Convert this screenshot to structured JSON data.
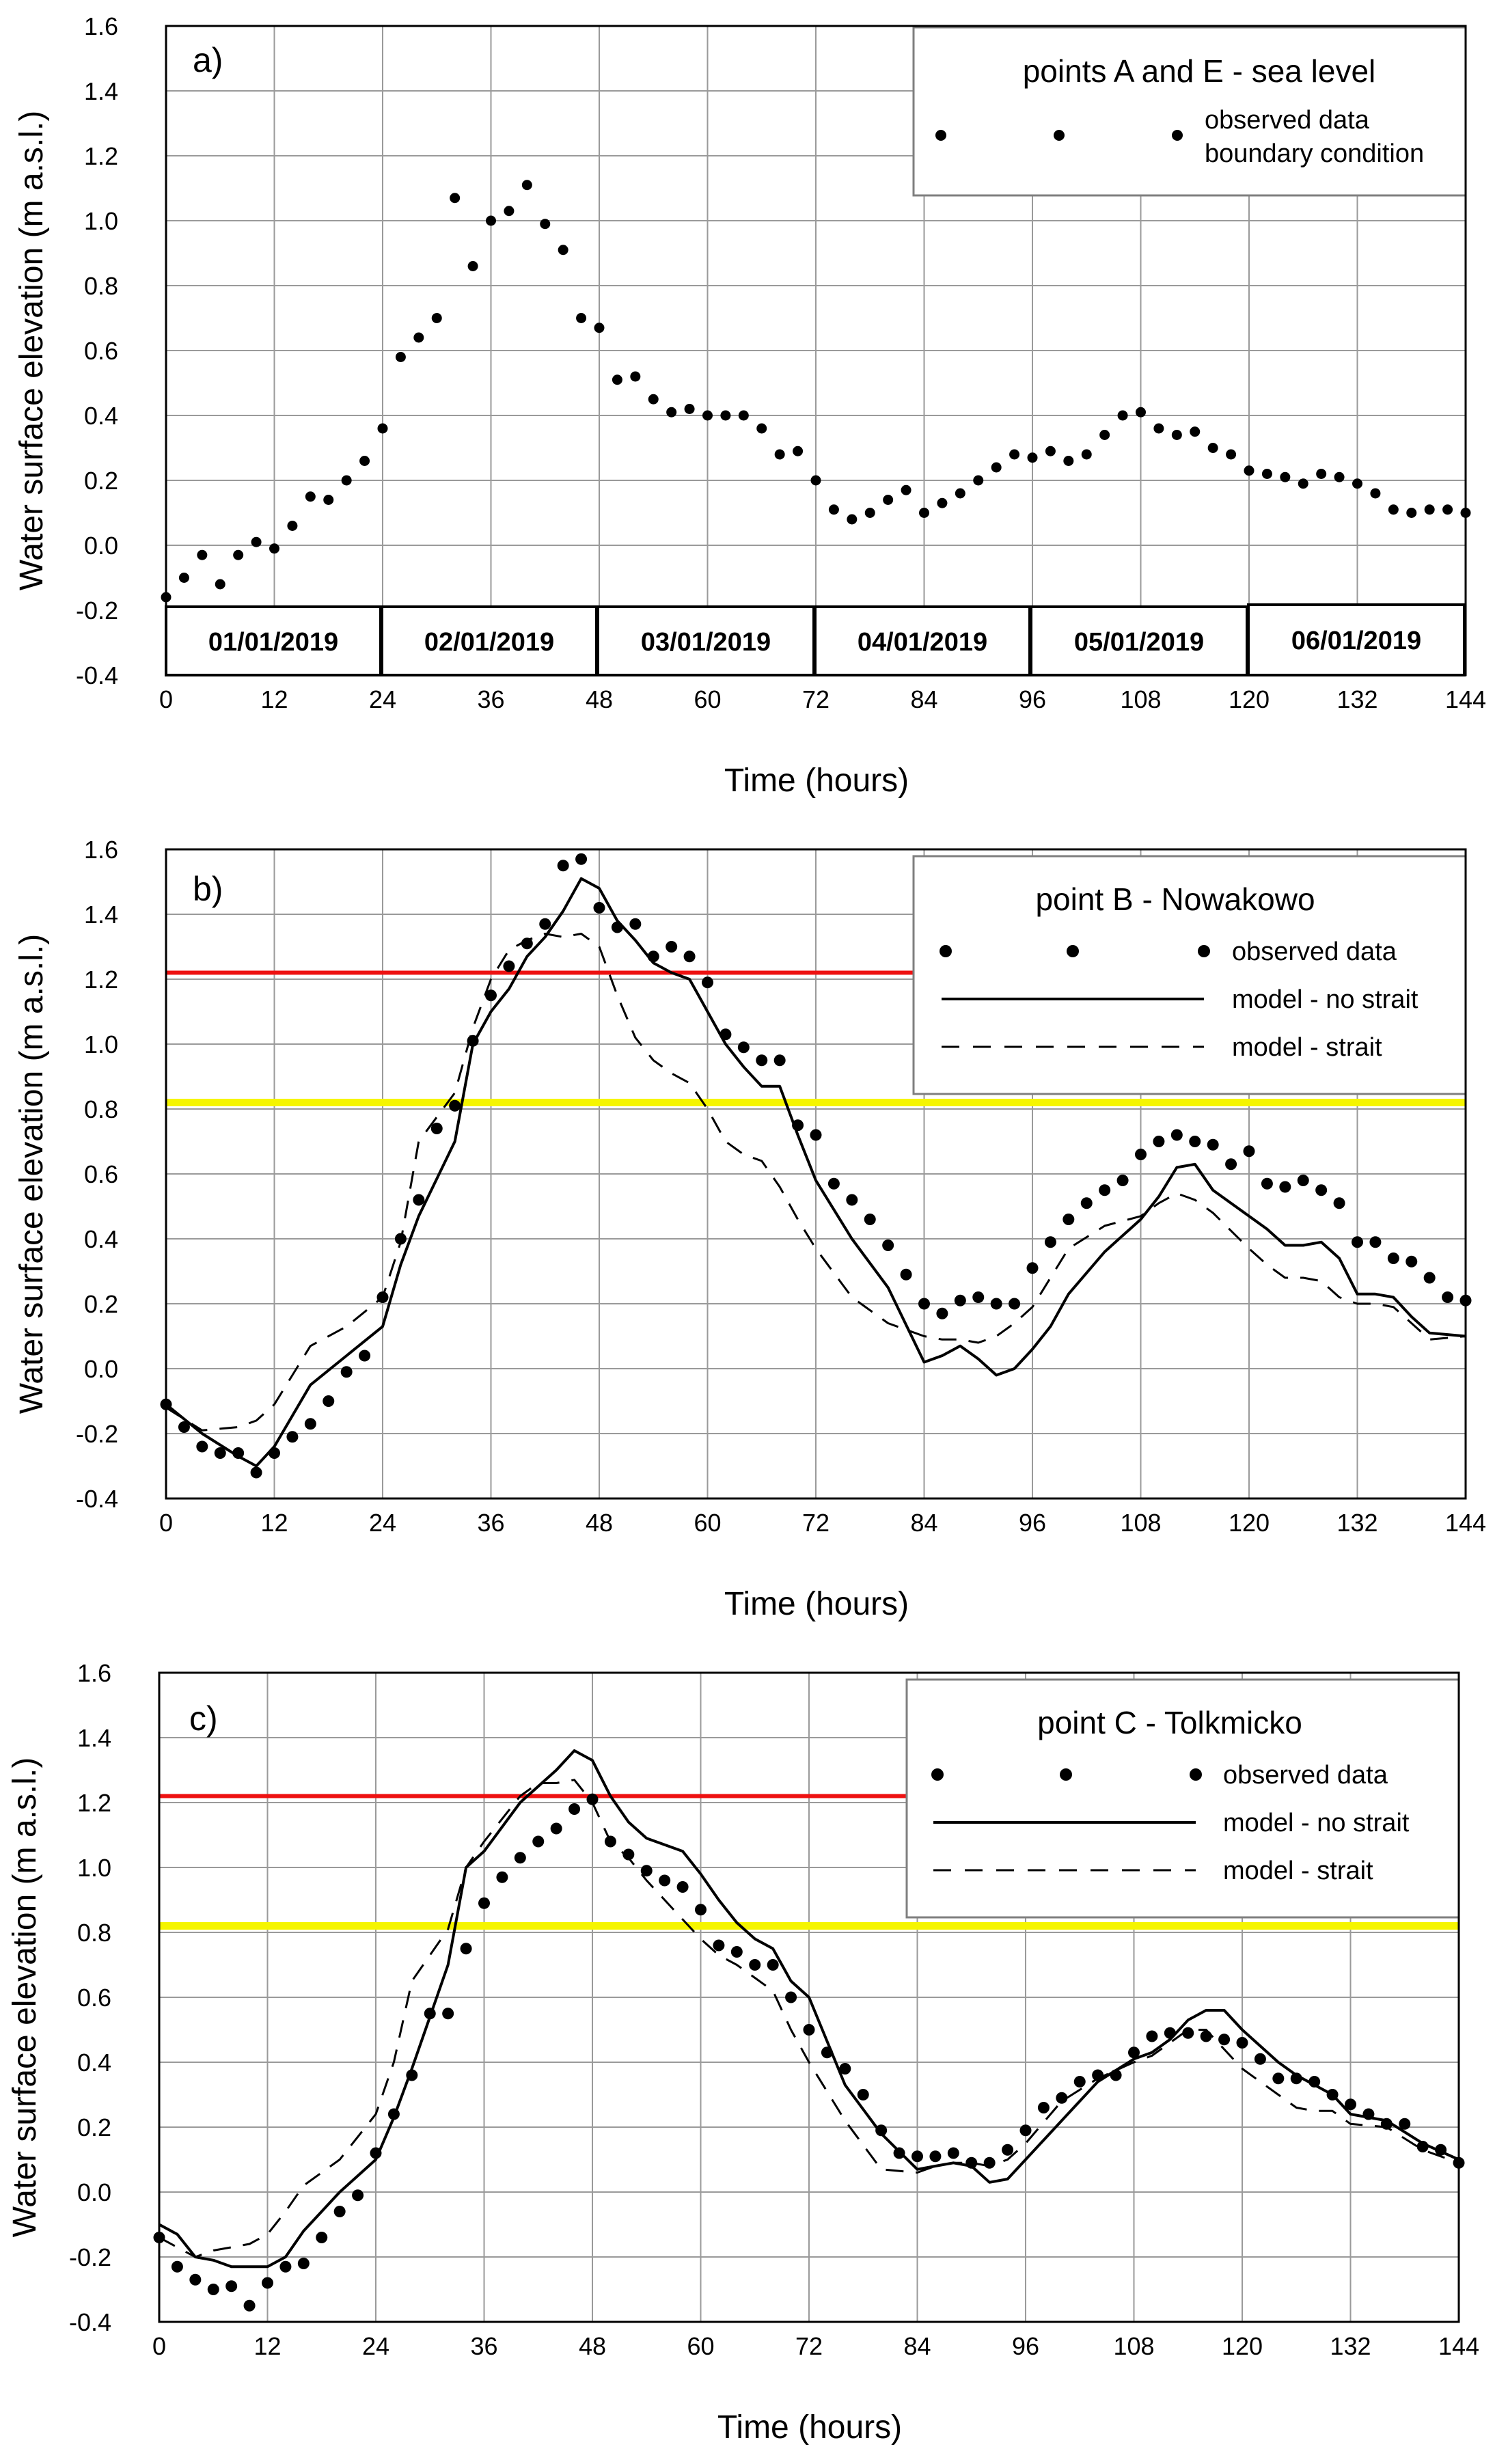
{
  "charts": [
    {
      "panel_label": "a)",
      "legend": {
        "title": "points A and E - sea level",
        "items": [
          "observed data",
          "boundary condition"
        ]
      },
      "dates": [
        "01/01/2019",
        "02/01/2019",
        "03/01/2019",
        "04/01/2019",
        "05/01/2019",
        "06/01/2019"
      ]
    },
    {
      "panel_label": "b)",
      "legend": {
        "title": "point B - Nowakowo",
        "items": [
          "observed data",
          "model - no strait",
          "model - strait"
        ]
      }
    },
    {
      "panel_label": "c)",
      "legend": {
        "title": "point C - Tolkmicko",
        "items": [
          "observed data",
          "model - no strait",
          "model - strait"
        ]
      }
    }
  ],
  "axes": {
    "ylabel": "Water surface elevation (m a.s.l.)",
    "xlabel": "Time (hours)",
    "xticks": [
      "0",
      "12",
      "24",
      "36",
      "48",
      "60",
      "72",
      "84",
      "96",
      "108",
      "120",
      "132",
      "144"
    ],
    "yticks": [
      "-0.4",
      "-0.2",
      "0.0",
      "0.2",
      "0.4",
      "0.6",
      "0.8",
      "1.0",
      "1.2",
      "1.4",
      "1.6"
    ]
  },
  "colors": {
    "red_line": "#ee1111",
    "yellow_line": "#f5f500",
    "grid": "#9a9a9a"
  },
  "chart_data": [
    {
      "type": "scatter",
      "xlim": [
        0,
        144
      ],
      "ylim": [
        -0.4,
        1.6
      ],
      "grid": true,
      "legend_position": "top-right",
      "series": [
        {
          "name": "observed data",
          "x": [
            0,
            2,
            4,
            6,
            8,
            10,
            12,
            14,
            16,
            18,
            20,
            22,
            24,
            26,
            28,
            30,
            32,
            34,
            36,
            38,
            40,
            42,
            44,
            46,
            48,
            50,
            52,
            54,
            56,
            58,
            60,
            62,
            64,
            66,
            68,
            70,
            72,
            74,
            76,
            78,
            80,
            82,
            84,
            86,
            88,
            90,
            92,
            94,
            96,
            98,
            100,
            102,
            104,
            106,
            108,
            110,
            112,
            114,
            116,
            118,
            120,
            122,
            124,
            126,
            128,
            130,
            132,
            134,
            136,
            138,
            140,
            142,
            144
          ],
          "y": [
            -0.16,
            -0.1,
            -0.03,
            -0.12,
            -0.03,
            0.01,
            -0.01,
            0.06,
            0.15,
            0.14,
            0.2,
            0.26,
            0.36,
            0.58,
            0.64,
            0.7,
            1.07,
            0.86,
            1.0,
            1.03,
            1.11,
            0.99,
            0.91,
            0.7,
            0.67,
            0.51,
            0.52,
            0.45,
            0.41,
            0.42,
            0.4,
            0.4,
            0.4,
            0.36,
            0.28,
            0.29,
            0.2,
            0.11,
            0.08,
            0.1,
            0.14,
            0.17,
            0.1,
            0.13,
            0.16,
            0.2,
            0.24,
            0.28,
            0.27,
            0.29,
            0.26,
            0.28,
            0.34,
            0.4,
            0.41,
            0.36,
            0.34,
            0.35,
            0.3,
            0.28,
            0.23,
            0.22,
            0.21,
            0.19,
            0.22,
            0.21,
            0.19,
            0.16,
            0.11,
            0.1,
            0.11,
            0.11,
            0.1
          ]
        }
      ]
    },
    {
      "type": "line",
      "xlim": [
        0,
        144
      ],
      "ylim": [
        -0.4,
        1.6
      ],
      "grid": true,
      "legend_position": "top-right",
      "reference_lines": [
        {
          "y": 1.22,
          "color": "red"
        },
        {
          "y": 0.82,
          "color": "yellow"
        }
      ],
      "series": [
        {
          "name": "observed data",
          "x": [
            0,
            2,
            4,
            6,
            8,
            10,
            12,
            14,
            16,
            18,
            20,
            22,
            24,
            26,
            28,
            30,
            32,
            34,
            36,
            38,
            40,
            42,
            44,
            46,
            48,
            50,
            52,
            54,
            56,
            58,
            60,
            62,
            64,
            66,
            68,
            70,
            72,
            74,
            76,
            78,
            80,
            82,
            84,
            86,
            88,
            90,
            92,
            94,
            96,
            98,
            100,
            102,
            104,
            106,
            108,
            110,
            112,
            114,
            116,
            118,
            120,
            122,
            124,
            126,
            128,
            130,
            132,
            134,
            136,
            138,
            140,
            142,
            144
          ],
          "y": [
            -0.11,
            -0.18,
            -0.24,
            -0.26,
            -0.26,
            -0.32,
            -0.26,
            -0.21,
            -0.17,
            -0.1,
            -0.01,
            0.04,
            0.22,
            0.4,
            0.52,
            0.74,
            0.81,
            1.01,
            1.15,
            1.24,
            1.31,
            1.37,
            1.55,
            1.57,
            1.42,
            1.36,
            1.37,
            1.27,
            1.3,
            1.27,
            1.19,
            1.03,
            0.99,
            0.95,
            0.95,
            0.75,
            0.72,
            0.57,
            0.52,
            0.46,
            0.38,
            0.29,
            0.2,
            0.17,
            0.21,
            0.22,
            0.2,
            0.2,
            0.31,
            0.39,
            0.46,
            0.51,
            0.55,
            0.58,
            0.66,
            0.7,
            0.72,
            0.7,
            0.69,
            0.63,
            0.67,
            0.57,
            0.56,
            0.58,
            0.55,
            0.51,
            0.39,
            0.39,
            0.34,
            0.33,
            0.28,
            0.22,
            0.21
          ]
        },
        {
          "name": "model - no strait",
          "x": [
            0,
            4,
            8,
            10,
            12,
            16,
            20,
            24,
            26,
            28,
            32,
            34,
            36,
            38,
            40,
            42,
            44,
            46,
            48,
            50,
            52,
            54,
            56,
            58,
            60,
            62,
            64,
            66,
            68,
            70,
            72,
            76,
            80,
            84,
            86,
            88,
            90,
            92,
            94,
            96,
            98,
            100,
            104,
            108,
            110,
            112,
            114,
            116,
            120,
            122,
            124,
            126,
            128,
            130,
            132,
            134,
            136,
            138,
            140,
            144
          ],
          "y": [
            -0.11,
            -0.2,
            -0.27,
            -0.3,
            -0.24,
            -0.05,
            0.04,
            0.13,
            0.32,
            0.47,
            0.7,
            1.0,
            1.1,
            1.17,
            1.27,
            1.33,
            1.41,
            1.51,
            1.48,
            1.38,
            1.32,
            1.25,
            1.22,
            1.2,
            1.1,
            1.0,
            0.93,
            0.87,
            0.87,
            0.72,
            0.58,
            0.4,
            0.25,
            0.02,
            0.04,
            0.07,
            0.03,
            -0.02,
            0.0,
            0.06,
            0.13,
            0.23,
            0.36,
            0.46,
            0.53,
            0.62,
            0.63,
            0.55,
            0.47,
            0.43,
            0.38,
            0.38,
            0.39,
            0.34,
            0.23,
            0.23,
            0.22,
            0.16,
            0.11,
            0.1
          ]
        },
        {
          "name": "model - strait",
          "x": [
            0,
            4,
            8,
            10,
            12,
            16,
            20,
            24,
            26,
            28,
            32,
            34,
            36,
            38,
            40,
            42,
            44,
            46,
            48,
            50,
            52,
            54,
            56,
            58,
            60,
            62,
            64,
            66,
            68,
            70,
            72,
            76,
            80,
            84,
            86,
            88,
            90,
            92,
            94,
            96,
            98,
            100,
            104,
            108,
            110,
            112,
            114,
            116,
            120,
            122,
            124,
            126,
            128,
            130,
            132,
            134,
            136,
            138,
            140,
            144
          ],
          "y": [
            -0.12,
            -0.19,
            -0.18,
            -0.16,
            -0.11,
            0.07,
            0.13,
            0.22,
            0.39,
            0.7,
            0.85,
            1.05,
            1.2,
            1.29,
            1.32,
            1.34,
            1.33,
            1.34,
            1.3,
            1.15,
            1.02,
            0.95,
            0.91,
            0.88,
            0.8,
            0.7,
            0.66,
            0.64,
            0.56,
            0.46,
            0.37,
            0.22,
            0.14,
            0.1,
            0.09,
            0.09,
            0.08,
            0.1,
            0.14,
            0.19,
            0.28,
            0.37,
            0.44,
            0.47,
            0.51,
            0.54,
            0.52,
            0.48,
            0.37,
            0.32,
            0.28,
            0.28,
            0.27,
            0.22,
            0.2,
            0.2,
            0.19,
            0.14,
            0.09,
            0.1
          ]
        }
      ]
    },
    {
      "type": "line",
      "xlim": [
        0,
        144
      ],
      "ylim": [
        -0.4,
        1.6
      ],
      "grid": true,
      "legend_position": "top-right",
      "reference_lines": [
        {
          "y": 1.22,
          "color": "red"
        },
        {
          "y": 0.82,
          "color": "yellow"
        }
      ],
      "series": [
        {
          "name": "observed data",
          "x": [
            0,
            2,
            4,
            6,
            8,
            10,
            12,
            14,
            16,
            18,
            20,
            22,
            24,
            26,
            28,
            30,
            32,
            34,
            36,
            38,
            40,
            42,
            44,
            46,
            48,
            50,
            52,
            54,
            56,
            58,
            60,
            62,
            64,
            66,
            68,
            70,
            72,
            74,
            76,
            78,
            80,
            82,
            84,
            86,
            88,
            90,
            92,
            94,
            96,
            98,
            100,
            102,
            104,
            106,
            108,
            110,
            112,
            114,
            116,
            118,
            120,
            122,
            124,
            126,
            128,
            130,
            132,
            134,
            136,
            138,
            140,
            142,
            144
          ],
          "y": [
            -0.14,
            -0.23,
            -0.27,
            -0.3,
            -0.29,
            -0.35,
            -0.28,
            -0.23,
            -0.22,
            -0.14,
            -0.06,
            -0.01,
            0.12,
            0.24,
            0.36,
            0.55,
            0.55,
            0.75,
            0.89,
            0.97,
            1.03,
            1.08,
            1.12,
            1.18,
            1.21,
            1.08,
            1.04,
            0.99,
            0.96,
            0.94,
            0.87,
            0.76,
            0.74,
            0.7,
            0.7,
            0.6,
            0.5,
            0.43,
            0.38,
            0.3,
            0.19,
            0.12,
            0.11,
            0.11,
            0.12,
            0.09,
            0.09,
            0.13,
            0.19,
            0.26,
            0.29,
            0.34,
            0.36,
            0.36,
            0.43,
            0.48,
            0.49,
            0.49,
            0.48,
            0.47,
            0.46,
            0.41,
            0.35,
            0.35,
            0.34,
            0.3,
            0.27,
            0.24,
            0.21,
            0.21,
            0.14,
            0.13,
            0.09
          ]
        },
        {
          "name": "model - no strait",
          "x": [
            0,
            2,
            4,
            6,
            8,
            10,
            12,
            14,
            16,
            20,
            24,
            26,
            28,
            32,
            34,
            36,
            40,
            44,
            46,
            48,
            50,
            52,
            54,
            56,
            58,
            60,
            62,
            64,
            66,
            68,
            70,
            72,
            76,
            80,
            84,
            86,
            88,
            90,
            92,
            94,
            96,
            100,
            104,
            108,
            110,
            112,
            114,
            116,
            118,
            120,
            124,
            126,
            128,
            130,
            132,
            136,
            140,
            144
          ],
          "y": [
            -0.1,
            -0.13,
            -0.2,
            -0.21,
            -0.23,
            -0.23,
            -0.23,
            -0.2,
            -0.12,
            0.0,
            0.1,
            0.23,
            0.38,
            0.7,
            1.0,
            1.05,
            1.2,
            1.3,
            1.36,
            1.33,
            1.22,
            1.14,
            1.09,
            1.07,
            1.05,
            0.98,
            0.9,
            0.83,
            0.78,
            0.75,
            0.65,
            0.6,
            0.33,
            0.18,
            0.07,
            0.08,
            0.09,
            0.08,
            0.03,
            0.04,
            0.1,
            0.22,
            0.34,
            0.41,
            0.43,
            0.47,
            0.53,
            0.56,
            0.56,
            0.5,
            0.4,
            0.36,
            0.33,
            0.3,
            0.24,
            0.22,
            0.15,
            0.1
          ]
        },
        {
          "name": "model - strait",
          "x": [
            0,
            2,
            4,
            6,
            8,
            10,
            12,
            14,
            16,
            20,
            24,
            26,
            28,
            32,
            34,
            36,
            38,
            40,
            42,
            44,
            46,
            48,
            50,
            52,
            54,
            56,
            58,
            60,
            62,
            64,
            66,
            68,
            70,
            72,
            76,
            80,
            84,
            86,
            88,
            90,
            92,
            94,
            96,
            100,
            104,
            108,
            110,
            112,
            114,
            116,
            118,
            120,
            124,
            126,
            128,
            130,
            132,
            136,
            140,
            144
          ],
          "y": [
            -0.14,
            -0.17,
            -0.2,
            -0.18,
            -0.17,
            -0.16,
            -0.13,
            -0.06,
            0.02,
            0.1,
            0.24,
            0.4,
            0.65,
            0.81,
            1.0,
            1.08,
            1.15,
            1.22,
            1.26,
            1.26,
            1.27,
            1.2,
            1.08,
            1.03,
            0.96,
            0.9,
            0.84,
            0.78,
            0.73,
            0.7,
            0.66,
            0.62,
            0.5,
            0.4,
            0.22,
            0.07,
            0.06,
            0.08,
            0.09,
            0.09,
            0.08,
            0.1,
            0.15,
            0.28,
            0.35,
            0.4,
            0.42,
            0.46,
            0.5,
            0.5,
            0.44,
            0.38,
            0.3,
            0.26,
            0.25,
            0.25,
            0.21,
            0.2,
            0.13,
            0.09
          ]
        }
      ]
    }
  ]
}
